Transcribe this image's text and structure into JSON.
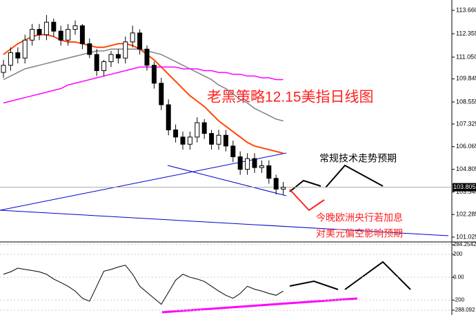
{
  "chart_data": {
    "type": "candlestick",
    "title": "老黑策略12.15美指日线图",
    "annotations": [
      "常规技术走势预期",
      "今晚欧洲央行若加息",
      "对美元偏空影响预期"
    ],
    "current_price": {
      "value": 103.805,
      "label": "103.805"
    },
    "open": [
      110.2,
      110.6,
      111.3,
      111.0,
      112.0,
      112.6,
      112.3,
      113.0,
      112.5,
      112.0,
      112.6,
      112.8,
      111.8,
      111.2,
      110.3,
      110.8,
      111.2,
      111.0,
      111.9,
      112.4,
      111.5,
      110.6,
      109.6,
      108.4,
      107.0,
      106.6,
      106.2,
      106.6,
      107.4,
      106.8,
      106.2,
      106.7,
      106.1,
      105.5,
      104.8,
      105.4,
      104.9,
      105.0,
      104.3,
      103.7
    ],
    "high": [
      110.9,
      111.6,
      111.6,
      112.3,
      112.9,
      112.9,
      113.4,
      113.2,
      112.8,
      112.9,
      113.1,
      112.9,
      112.1,
      111.5,
      110.9,
      111.4,
      111.5,
      112.2,
      112.8,
      112.6,
      111.7,
      110.8,
      109.9,
      108.7,
      107.3,
      106.9,
      106.9,
      107.7,
      107.6,
      107.0,
      107.0,
      107.0,
      106.4,
      105.8,
      105.7,
      105.7,
      105.3,
      105.3,
      104.5,
      104.1
    ],
    "low": [
      109.9,
      110.3,
      110.7,
      110.7,
      111.7,
      112.0,
      112.0,
      112.2,
      111.7,
      111.7,
      112.3,
      111.5,
      111.0,
      110.0,
      110.0,
      110.5,
      110.7,
      110.7,
      111.6,
      111.2,
      110.3,
      109.3,
      108.1,
      106.7,
      106.3,
      105.9,
      105.9,
      106.3,
      106.5,
      105.9,
      105.9,
      105.8,
      105.2,
      104.5,
      104.5,
      104.6,
      104.6,
      104.0,
      103.4,
      103.4
    ],
    "close": [
      110.6,
      111.3,
      111.0,
      112.0,
      112.6,
      112.3,
      113.0,
      112.5,
      112.0,
      112.6,
      112.8,
      111.8,
      111.2,
      110.3,
      110.8,
      111.2,
      111.0,
      111.9,
      112.4,
      111.5,
      110.6,
      109.6,
      108.4,
      107.0,
      106.6,
      106.2,
      106.6,
      107.4,
      106.8,
      106.2,
      106.7,
      106.1,
      105.5,
      104.8,
      105.4,
      104.9,
      105.0,
      104.3,
      103.7,
      103.8
    ],
    "series": [
      {
        "color": "#ff4500",
        "values": [
          111.2,
          111.5,
          111.8,
          112.0,
          112.2,
          112.3,
          112.3,
          112.2,
          112.0,
          111.9,
          111.9,
          111.8,
          111.7,
          111.6,
          111.6,
          111.7,
          111.8,
          111.8,
          111.7,
          111.5,
          111.2,
          110.9,
          110.5,
          110.1,
          109.7,
          109.3,
          108.9,
          108.6,
          108.3,
          107.9,
          107.5,
          107.2,
          106.9,
          106.6,
          106.3,
          106.1,
          106.0,
          105.9,
          105.8,
          105.7
        ]
      },
      {
        "color": "#808080",
        "values": [
          109.8,
          110.0,
          110.2,
          110.4,
          110.5,
          110.6,
          110.7,
          110.8,
          110.9,
          111.0,
          111.1,
          111.2,
          111.3,
          111.4,
          111.4,
          111.5,
          111.5,
          111.5,
          111.5,
          111.5,
          111.4,
          111.3,
          111.2,
          111.0,
          110.8,
          110.6,
          110.4,
          110.2,
          110.0,
          109.8,
          109.5,
          109.3,
          109.0,
          108.7,
          108.5,
          108.2,
          108.0,
          107.8,
          107.6,
          107.5
        ]
      },
      {
        "color": "#ff00ff",
        "values": [
          108.5,
          108.6,
          108.7,
          108.8,
          108.9,
          109.0,
          109.1,
          109.2,
          109.3,
          109.5,
          109.6,
          109.7,
          109.8,
          109.9,
          110.0,
          110.1,
          110.2,
          110.3,
          110.4,
          110.5,
          110.5,
          110.5,
          110.5,
          110.5,
          110.5,
          110.4,
          110.4,
          110.4,
          110.3,
          110.3,
          110.2,
          110.2,
          110.1,
          110.1,
          110.0,
          110.0,
          109.9,
          109.9,
          109.8,
          109.8
        ]
      }
    ],
    "ylim": [
      100.795,
      114.236
    ],
    "yticks": [
      {
        "value": 113.66,
        "label": "113.660"
      },
      {
        "value": 112.355,
        "label": "112.355"
      },
      {
        "value": 111.05,
        "label": "111.050"
      },
      {
        "value": 109.845,
        "label": "109.845"
      },
      {
        "value": 108.555,
        "label": "108.555"
      },
      {
        "value": 107.325,
        "label": "107.325"
      },
      {
        "value": 106.065,
        "label": "106.065"
      },
      {
        "value": 104.805,
        "label": "104.805"
      },
      {
        "value": 103.545,
        "label": "103.545"
      },
      {
        "value": 102.285,
        "label": "102.285"
      },
      {
        "value": 101.025,
        "label": "101.025"
      }
    ],
    "oscillator": {
      "color": "#000000",
      "values": [
        26,
        47,
        79,
        68,
        58,
        47,
        26,
        -16,
        -47,
        -79,
        -121,
        -184,
        -210,
        -79,
        53,
        68,
        89,
        105,
        26,
        -79,
        -132,
        -184,
        -237,
        -132,
        -26,
        26,
        0,
        -16,
        -37,
        -79,
        -121,
        -158,
        -184,
        -142,
        -79,
        -105,
        -121,
        -142,
        -158,
        -121
      ],
      "ylim": [
        -288.092,
        284.2542
      ],
      "yticks": [
        284.2542,
        200,
        {
          "value": 0,
          "label": "0.00"
        },
        -200,
        -288.092
      ]
    }
  }
}
